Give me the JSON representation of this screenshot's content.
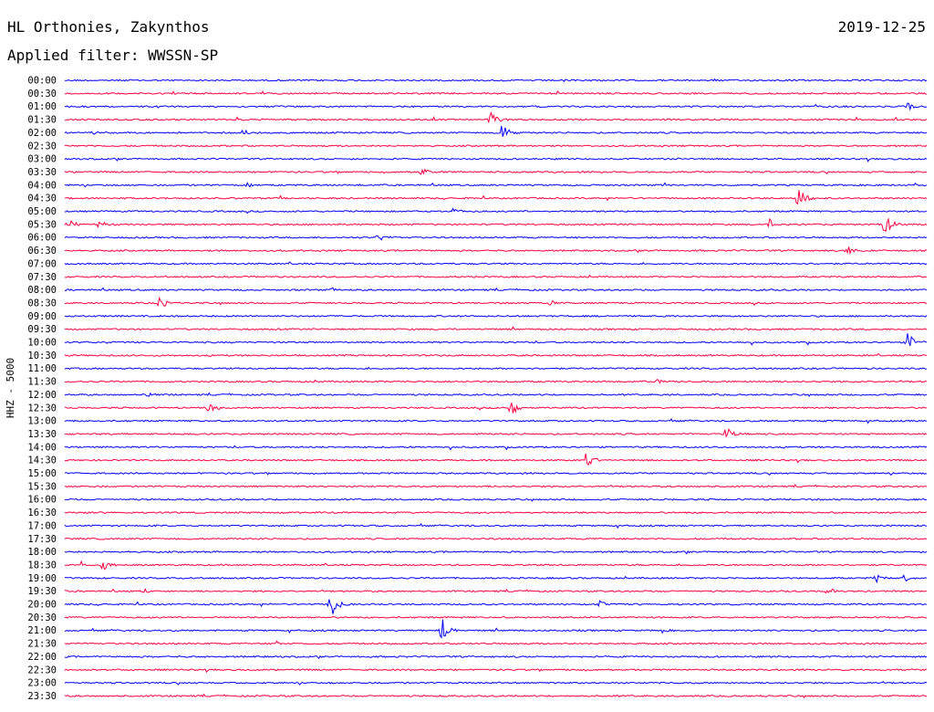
{
  "header": {
    "station": "HL Orthonies, Zakynthos",
    "date": "2019-12-25",
    "filter": "Applied filter: WWSSN-SP"
  },
  "chart_data": {
    "type": "line",
    "ylabel": "HHZ - 5000",
    "row_labels": [
      "00:00",
      "00:30",
      "01:00",
      "01:30",
      "02:00",
      "02:30",
      "03:00",
      "03:30",
      "04:00",
      "04:30",
      "05:00",
      "05:30",
      "06:00",
      "06:30",
      "07:00",
      "07:30",
      "08:00",
      "08:30",
      "09:00",
      "09:30",
      "10:00",
      "10:30",
      "11:00",
      "11:30",
      "12:00",
      "12:30",
      "13:00",
      "13:30",
      "14:00",
      "14:30",
      "15:00",
      "15:30",
      "16:00",
      "16:30",
      "17:00",
      "17:30",
      "18:00",
      "18:30",
      "19:00",
      "19:30",
      "20:00",
      "20:30",
      "21:00",
      "21:30",
      "22:00",
      "22:30",
      "23:00",
      "23:30"
    ],
    "row_colors": [
      "#0000ff",
      "#ff0040"
    ],
    "x_unit": "minutes within half-hour row",
    "xlim": [
      0,
      30
    ],
    "events": [
      {
        "row": "01:00",
        "minute": 29.3,
        "amplitude": 0.35
      },
      {
        "row": "01:30",
        "minute": 14.8,
        "amplitude": 0.8
      },
      {
        "row": "02:00",
        "minute": 15.2,
        "amplitude": 0.8
      },
      {
        "row": "02:00",
        "minute": 6.2,
        "amplitude": 0.3
      },
      {
        "row": "02:00",
        "minute": 1.0,
        "amplitude": 0.2
      },
      {
        "row": "03:30",
        "minute": 12.4,
        "amplitude": 0.45
      },
      {
        "row": "04:00",
        "minute": 6.3,
        "amplitude": 0.3
      },
      {
        "row": "04:30",
        "minute": 25.5,
        "amplitude": 1.0
      },
      {
        "row": "05:00",
        "minute": 13.5,
        "amplitude": 0.3
      },
      {
        "row": "05:30",
        "minute": 0.1,
        "amplitude": 0.45
      },
      {
        "row": "05:30",
        "minute": 1.2,
        "amplitude": 0.5
      },
      {
        "row": "05:30",
        "minute": 24.5,
        "amplitude": 0.4
      },
      {
        "row": "05:30",
        "minute": 28.5,
        "amplitude": 0.95
      },
      {
        "row": "06:00",
        "minute": 10.9,
        "amplitude": 0.35
      },
      {
        "row": "06:30",
        "minute": 27.2,
        "amplitude": 0.45
      },
      {
        "row": "08:00",
        "minute": 9.3,
        "amplitude": 0.2
      },
      {
        "row": "08:30",
        "minute": 3.3,
        "amplitude": 0.55
      },
      {
        "row": "08:30",
        "minute": 16.9,
        "amplitude": 0.35
      },
      {
        "row": "10:00",
        "minute": 29.3,
        "amplitude": 0.95
      },
      {
        "row": "11:30",
        "minute": 20.6,
        "amplitude": 0.25
      },
      {
        "row": "12:00",
        "minute": 2.9,
        "amplitude": 0.25
      },
      {
        "row": "12:30",
        "minute": 5.0,
        "amplitude": 0.5
      },
      {
        "row": "12:30",
        "minute": 15.5,
        "amplitude": 0.7
      },
      {
        "row": "13:30",
        "minute": 23.0,
        "amplitude": 0.85
      },
      {
        "row": "14:30",
        "minute": 18.1,
        "amplitude": 0.9
      },
      {
        "row": "18:30",
        "minute": 0.6,
        "amplitude": 0.3
      },
      {
        "row": "18:30",
        "minute": 1.3,
        "amplitude": 0.5
      },
      {
        "row": "19:00",
        "minute": 28.2,
        "amplitude": 0.35
      },
      {
        "row": "19:00",
        "minute": 29.2,
        "amplitude": 0.35
      },
      {
        "row": "19:30",
        "minute": 2.8,
        "amplitude": 0.2
      },
      {
        "row": "19:30",
        "minute": 26.5,
        "amplitude": 0.35
      },
      {
        "row": "20:00",
        "minute": 9.2,
        "amplitude": 1.6
      },
      {
        "row": "20:00",
        "minute": 18.6,
        "amplitude": 0.35
      },
      {
        "row": "21:00",
        "minute": 13.1,
        "amplitude": 1.4
      },
      {
        "row": "21:00",
        "minute": 20.8,
        "amplitude": 0.25
      },
      {
        "row": "21:30",
        "minute": 7.3,
        "amplitude": 0.25
      }
    ]
  }
}
